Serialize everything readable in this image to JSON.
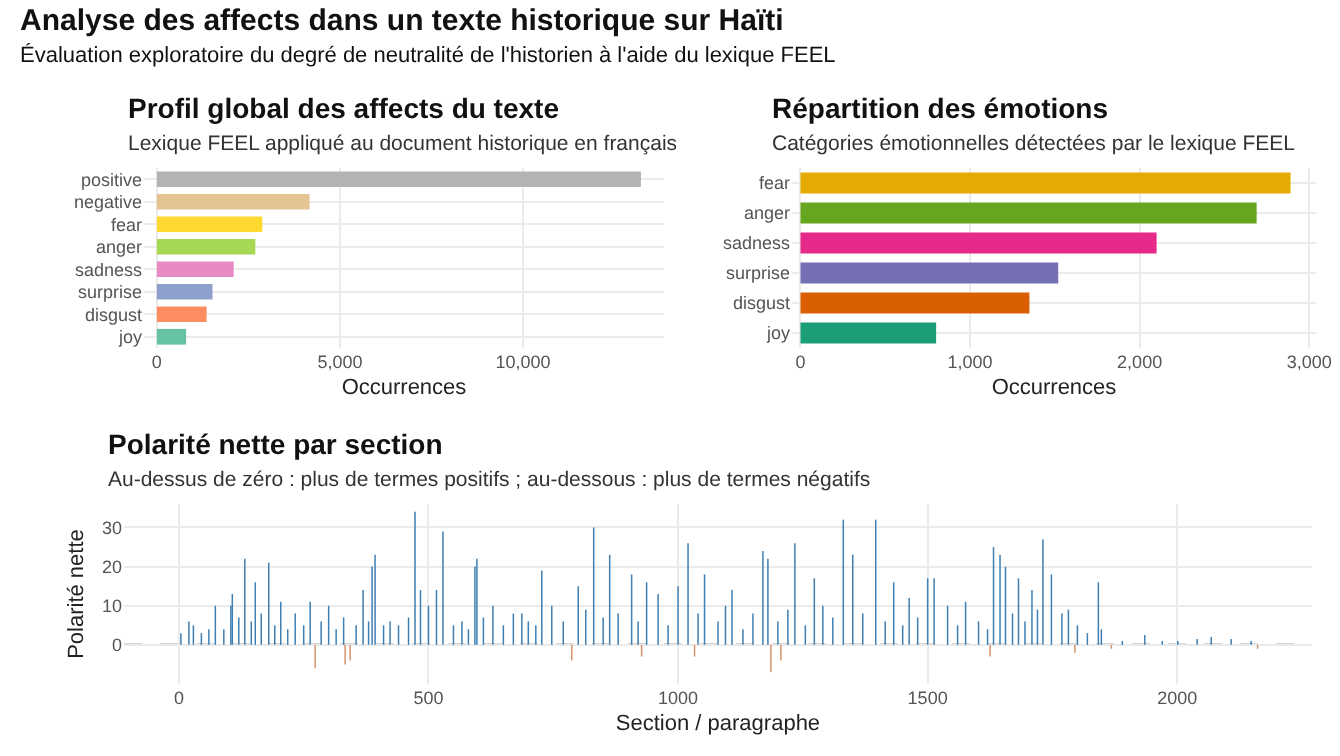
{
  "chart_data": [
    {
      "type": "bar",
      "orientation": "horizontal",
      "title": "Profil global des affects du texte",
      "subtitle": "Lexique FEEL appliqué au document historique en français",
      "xlabel": "Occurrences",
      "annotations": [
        "Analyse des affects dans un texte historique sur Haïti",
        "Évaluation exploratoire du degré de neutralité de l'historien à l'aide du lexique FEEL"
      ],
      "categories": [
        "positive",
        "negative",
        "fear",
        "anger",
        "sadness",
        "surprise",
        "disgust",
        "joy"
      ],
      "values": [
        13220,
        4170,
        2880,
        2690,
        2100,
        1520,
        1360,
        800
      ],
      "colors": [
        "#b3b3b3",
        "#e5c494",
        "#ffd92f",
        "#a6d854",
        "#e78ac3",
        "#8da0cb",
        "#fc8d62",
        "#66c2a5"
      ],
      "xlim": [
        -350,
        13850
      ],
      "xticks": [
        0,
        {
          "value": 5000,
          "label": "5,000"
        },
        {
          "value": 10000,
          "label": "10,000"
        }
      ],
      "grid": true
    },
    {
      "type": "bar",
      "orientation": "horizontal",
      "title": "Répartition des émotions",
      "subtitle": "Catégories émotionnelles détectées par le lexique FEEL",
      "xlabel": "Occurrences",
      "categories": [
        "fear",
        "anger",
        "sadness",
        "surprise",
        "disgust",
        "joy"
      ],
      "values": [
        2890,
        2690,
        2100,
        1520,
        1350,
        800
      ],
      "colors": [
        "#e6ab02",
        "#66a61e",
        "#e7298a",
        "#7570b3",
        "#d95f02",
        "#1b9e77"
      ],
      "xlim": [
        -50,
        3040
      ],
      "xticks": [
        0,
        {
          "value": 1000,
          "label": "1,000"
        },
        {
          "value": 2000,
          "label": "2,000"
        },
        {
          "value": 3000,
          "label": "3,000"
        }
      ],
      "grid": true
    },
    {
      "type": "bar",
      "title": "Polarité nette par section",
      "subtitle": "Au-dessus de zéro : plus de termes positifs ; au-dessous : plus de termes négatifs",
      "xlabel": "Section / paragraphe",
      "ylabel": "Polarité nette",
      "series": [
        {
          "color": "#3d7fb3",
          "x": [
            4,
            20,
            29,
            45,
            60,
            73,
            90,
            104,
            107,
            120,
            132,
            145,
            153,
            165,
            180,
            192,
            204,
            218,
            233,
            250,
            263,
            285,
            300,
            315,
            330,
            355,
            369,
            380,
            387,
            393,
            410,
            423,
            440,
            460,
            473,
            484,
            500,
            516,
            529,
            550,
            567,
            580,
            593,
            597,
            610,
            629,
            650,
            670,
            687,
            700,
            715,
            727,
            747,
            770,
            800,
            815,
            831,
            850,
            863,
            880,
            907,
            920,
            937,
            960,
            980,
            1000,
            1020,
            1040,
            1053,
            1080,
            1095,
            1108,
            1130,
            1150,
            1170,
            1180,
            1200,
            1220,
            1234,
            1255,
            1273,
            1290,
            1310,
            1331,
            1350,
            1370,
            1396,
            1415,
            1432,
            1450,
            1463,
            1480,
            1500,
            1513,
            1540,
            1560,
            1576,
            1602,
            1620,
            1632,
            1645,
            1656,
            1670,
            1682,
            1695,
            1709,
            1720,
            1731,
            1748,
            1769,
            1782,
            1800,
            1820,
            1842,
            1848,
            1890,
            1935,
            1970,
            2001,
            2040,
            2068,
            2108,
            2148
          ],
          "values": [
            3,
            6,
            5,
            3,
            4,
            10,
            4,
            10,
            13,
            7,
            22,
            6,
            16,
            8,
            21,
            5,
            11,
            4,
            8,
            5,
            11,
            6,
            10,
            4,
            7,
            5,
            14,
            6,
            20,
            23,
            5,
            6,
            5,
            7,
            34,
            14,
            10,
            14,
            29,
            5,
            6,
            4,
            20,
            22,
            7,
            10,
            5,
            8,
            8,
            6,
            5,
            19,
            10,
            6,
            15,
            9,
            30,
            7,
            23,
            8,
            18,
            6,
            16,
            13,
            5,
            15,
            26,
            8,
            18,
            6,
            10,
            14,
            4,
            8,
            24,
            22,
            6,
            9,
            26,
            5,
            17,
            10,
            7,
            32,
            23,
            8,
            32,
            6,
            16,
            5,
            12,
            7,
            17,
            17,
            10,
            5,
            11,
            6,
            4,
            25,
            23,
            20,
            8,
            17,
            6,
            14,
            9,
            27,
            18,
            8,
            9,
            5,
            3,
            16,
            4,
            1,
            2.5,
            1,
            1,
            1.5,
            2,
            1.5,
            1
          ]
        },
        {
          "color": "#d9916c",
          "x": [
            273,
            333,
            343,
            787,
            927,
            1033,
            1186,
            1206,
            1625,
            1795,
            1868,
            2161
          ],
          "values": [
            -6,
            -5,
            -4,
            -4,
            -3,
            -3,
            -7,
            -4,
            -3,
            -2,
            -1,
            -1
          ]
        }
      ],
      "xlim": [
        -110,
        2270
      ],
      "xticks": [
        0,
        500,
        1000,
        1500,
        2000
      ],
      "ylim": [
        -10,
        36
      ],
      "yticks": [
        0,
        10,
        20,
        30
      ],
      "grid": true,
      "ref_lines": [
        {
          "axis": "y",
          "value": 0,
          "color": "#555555",
          "line_style": "dashed"
        }
      ]
    }
  ]
}
